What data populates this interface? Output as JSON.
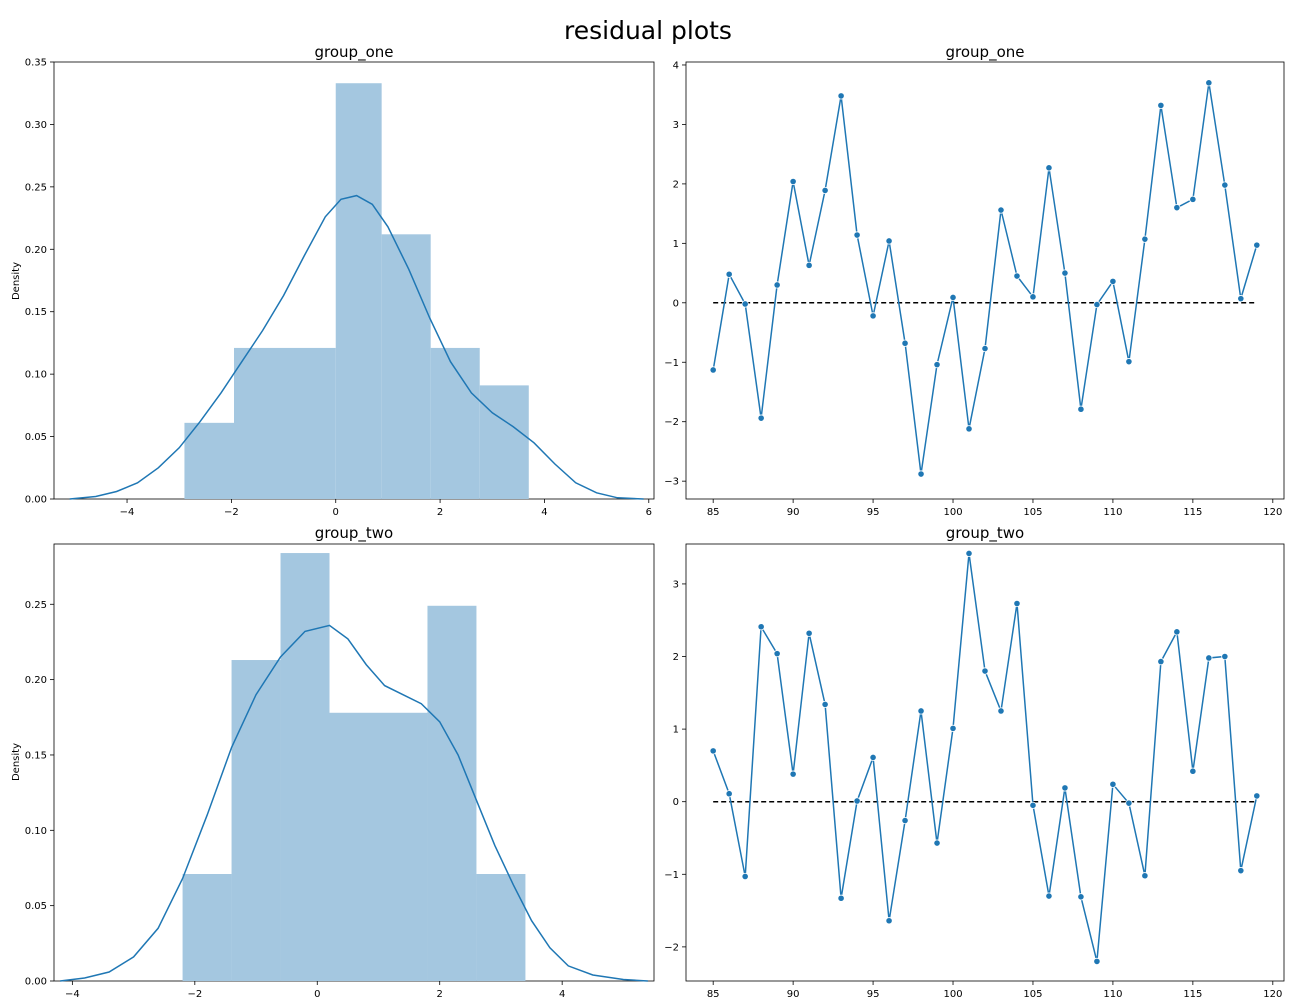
{
  "figure_title": "residual plots",
  "colors": {
    "series": "#1f77b4",
    "hist_fill": "#a4c7e0",
    "zero_line": "#000000"
  },
  "chart_data": [
    {
      "type": "histogram",
      "title": "group_one",
      "xlabel": "",
      "ylabel": "Density",
      "xlim": [
        -5.4,
        6.1
      ],
      "ylim": [
        0,
        0.35
      ],
      "xticks": [
        -4,
        -2,
        0,
        2,
        4,
        6
      ],
      "yticks": [
        0.0,
        0.05,
        0.1,
        0.15,
        0.2,
        0.25,
        0.3,
        0.35
      ],
      "ytick_labels": [
        "0.00",
        "0.05",
        "0.10",
        "0.15",
        "0.20",
        "0.25",
        "0.30",
        "0.35"
      ],
      "bins": [
        {
          "x0": -2.9,
          "x1": -1.95,
          "density": 0.061
        },
        {
          "x0": -1.95,
          "x1": 0.0,
          "density": 0.121
        },
        {
          "x0": 0.0,
          "x1": 0.88,
          "density": 0.333
        },
        {
          "x0": 0.88,
          "x1": 1.82,
          "density": 0.212
        },
        {
          "x0": 1.82,
          "x1": 2.76,
          "density": 0.121
        },
        {
          "x0": 2.76,
          "x1": 3.7,
          "density": 0.091
        }
      ],
      "kde": {
        "x": [
          -5.1,
          -4.6,
          -4.2,
          -3.8,
          -3.4,
          -3.0,
          -2.6,
          -2.2,
          -1.8,
          -1.4,
          -1.0,
          -0.6,
          -0.2,
          0.1,
          0.4,
          0.7,
          1.0,
          1.4,
          1.8,
          2.2,
          2.6,
          3.0,
          3.4,
          3.8,
          4.2,
          4.6,
          5.0,
          5.4,
          5.9
        ],
        "y": [
          0.0,
          0.002,
          0.006,
          0.013,
          0.025,
          0.041,
          0.062,
          0.085,
          0.11,
          0.135,
          0.163,
          0.195,
          0.226,
          0.24,
          0.243,
          0.236,
          0.218,
          0.184,
          0.145,
          0.11,
          0.085,
          0.069,
          0.058,
          0.045,
          0.028,
          0.013,
          0.005,
          0.001,
          0.0
        ]
      }
    },
    {
      "type": "line",
      "title": "group_one",
      "xlabel": "",
      "ylabel": "",
      "xlim": [
        83.3,
        120.7
      ],
      "ylim": [
        -3.3,
        4.05
      ],
      "xticks": [
        85,
        90,
        95,
        100,
        105,
        110,
        115,
        120
      ],
      "yticks": [
        -3,
        -2,
        -1,
        0,
        1,
        2,
        3,
        4
      ],
      "x": [
        85,
        86,
        87,
        88,
        89,
        90,
        91,
        92,
        93,
        94,
        95,
        96,
        97,
        98,
        99,
        100,
        101,
        102,
        103,
        104,
        105,
        106,
        107,
        108,
        109,
        110,
        111,
        112,
        113,
        114,
        115,
        116,
        117,
        118,
        119
      ],
      "y": [
        -1.13,
        0.48,
        -0.02,
        -1.94,
        0.3,
        2.04,
        0.63,
        1.89,
        3.48,
        1.14,
        -0.22,
        1.04,
        -0.68,
        -2.88,
        -1.04,
        0.09,
        -2.12,
        -0.77,
        1.56,
        0.45,
        0.1,
        2.27,
        0.5,
        -1.79,
        -0.03,
        0.36,
        -0.99,
        1.07,
        3.32,
        1.6,
        1.74,
        3.7,
        1.98,
        0.07,
        0.97
      ],
      "zero_line": {
        "x": [
          85,
          119
        ],
        "y": 0
      }
    },
    {
      "type": "histogram",
      "title": "group_two",
      "xlabel": "",
      "ylabel": "Density",
      "xlim": [
        -4.3,
        5.5
      ],
      "ylim": [
        0,
        0.29
      ],
      "xticks": [
        -4,
        -2,
        0,
        2,
        4
      ],
      "yticks": [
        0.0,
        0.05,
        0.1,
        0.15,
        0.2,
        0.25
      ],
      "ytick_labels": [
        "0.00",
        "0.05",
        "0.10",
        "0.15",
        "0.20",
        "0.25"
      ],
      "bins": [
        {
          "x0": -2.2,
          "x1": -1.4,
          "density": 0.071
        },
        {
          "x0": -1.4,
          "x1": -0.6,
          "density": 0.213
        },
        {
          "x0": -0.6,
          "x1": 0.2,
          "density": 0.284
        },
        {
          "x0": 0.2,
          "x1": 1.8,
          "density": 0.178
        },
        {
          "x0": 1.8,
          "x1": 2.6,
          "density": 0.249
        },
        {
          "x0": 2.6,
          "x1": 3.4,
          "density": 0.071
        }
      ],
      "kde": {
        "x": [
          -4.2,
          -3.8,
          -3.4,
          -3.0,
          -2.6,
          -2.2,
          -1.8,
          -1.4,
          -1.0,
          -0.6,
          -0.2,
          0.2,
          0.5,
          0.8,
          1.1,
          1.4,
          1.7,
          2.0,
          2.3,
          2.6,
          2.9,
          3.2,
          3.5,
          3.8,
          4.1,
          4.5,
          5.0,
          5.4
        ],
        "y": [
          0.0,
          0.002,
          0.006,
          0.016,
          0.035,
          0.068,
          0.11,
          0.155,
          0.19,
          0.215,
          0.232,
          0.236,
          0.227,
          0.21,
          0.196,
          0.19,
          0.184,
          0.172,
          0.15,
          0.12,
          0.09,
          0.064,
          0.04,
          0.022,
          0.01,
          0.004,
          0.001,
          0.0
        ]
      }
    },
    {
      "type": "line",
      "title": "group_two",
      "xlabel": "",
      "ylabel": "",
      "xlim": [
        83.3,
        120.7
      ],
      "ylim": [
        -2.47,
        3.55
      ],
      "xticks": [
        85,
        90,
        95,
        100,
        105,
        110,
        115,
        120
      ],
      "yticks": [
        -2,
        -1,
        0,
        1,
        2,
        3
      ],
      "x": [
        85,
        86,
        87,
        88,
        89,
        90,
        91,
        92,
        93,
        94,
        95,
        96,
        97,
        98,
        99,
        100,
        101,
        102,
        103,
        104,
        105,
        106,
        107,
        108,
        109,
        110,
        111,
        112,
        113,
        114,
        115,
        116,
        117,
        118,
        119
      ],
      "y": [
        0.7,
        0.11,
        -1.03,
        2.41,
        2.04,
        0.38,
        2.32,
        1.34,
        -1.33,
        0.01,
        0.61,
        -1.64,
        -0.26,
        1.25,
        -0.57,
        1.01,
        3.42,
        1.8,
        1.25,
        2.73,
        -0.05,
        -1.3,
        0.19,
        -1.31,
        -2.2,
        0.24,
        -0.02,
        -1.02,
        1.93,
        2.34,
        0.42,
        1.98,
        2.0,
        -0.95,
        0.08
      ],
      "zero_line": {
        "x": [
          85,
          119
        ],
        "y": 0
      }
    }
  ]
}
